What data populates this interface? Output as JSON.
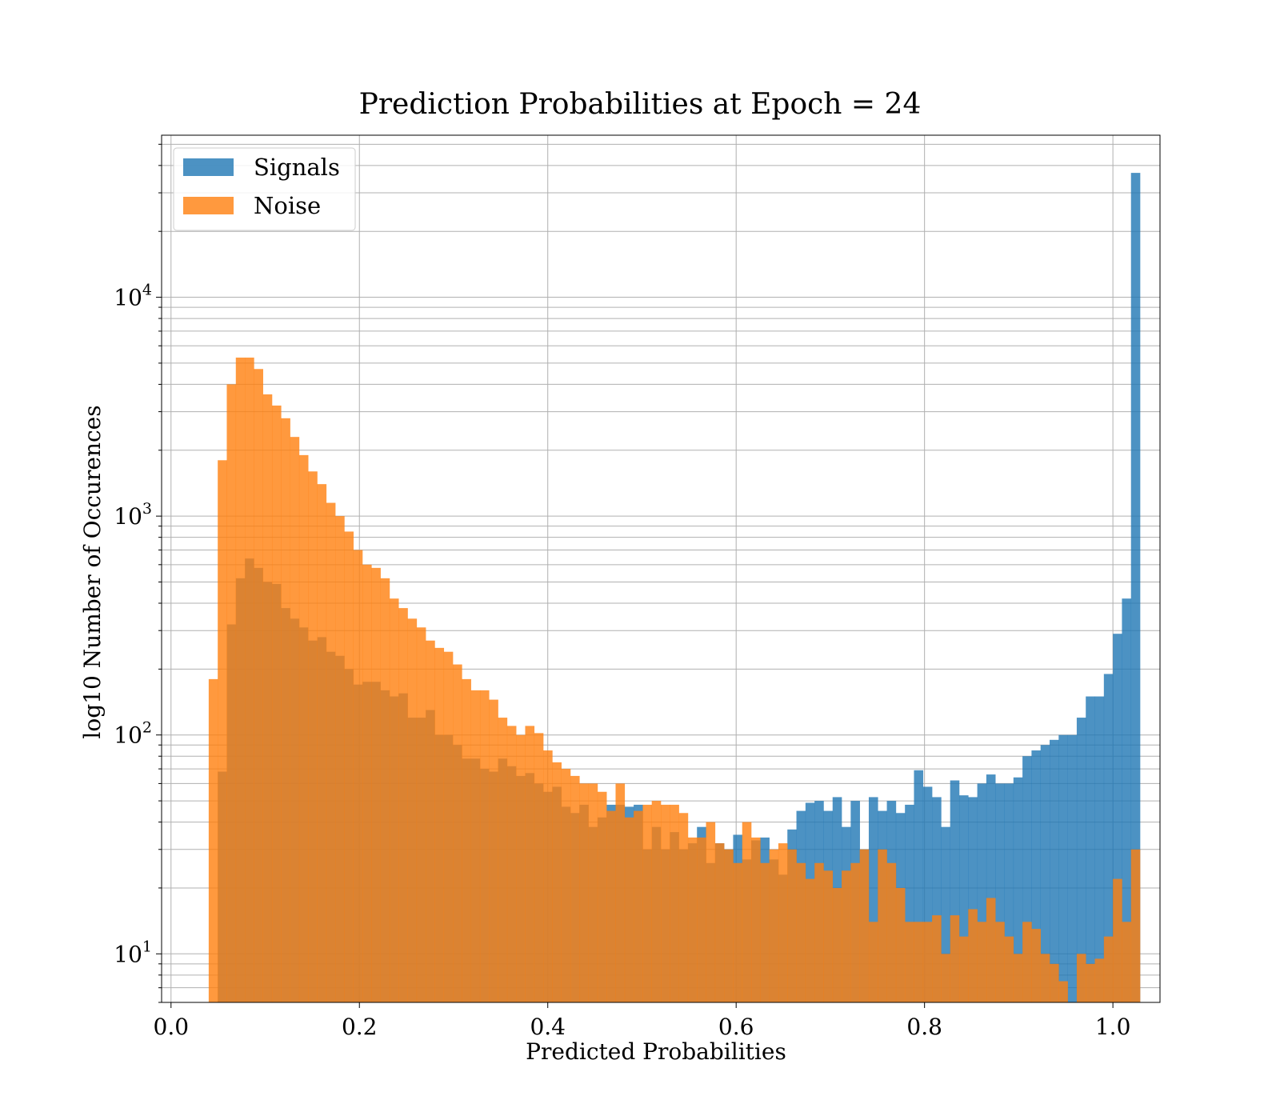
{
  "chart_data": {
    "type": "bar",
    "title": "Prediction Probabilities at Epoch = 24",
    "xlabel": "Predicted Probabilities",
    "ylabel": "log10 Number of Occurences",
    "xlim": [
      -0.01,
      1.05
    ],
    "ylim": [
      6,
      55000
    ],
    "yscale": "log",
    "grid": true,
    "legend": "upper-left",
    "bin_start": 0.04,
    "bin_width": 0.0096,
    "x_ticks": [
      {
        "value": 0.0,
        "label": "0.0"
      },
      {
        "value": 0.2,
        "label": "0.2"
      },
      {
        "value": 0.4,
        "label": "0.4"
      },
      {
        "value": 0.6,
        "label": "0.6"
      },
      {
        "value": 0.8,
        "label": "0.8"
      },
      {
        "value": 1.0,
        "label": "1.0"
      }
    ],
    "y_ticks": [
      {
        "value": 10,
        "base": "10",
        "exp": "1"
      },
      {
        "value": 100,
        "base": "10",
        "exp": "2"
      },
      {
        "value": 1000,
        "base": "10",
        "exp": "3"
      },
      {
        "value": 10000,
        "base": "10",
        "exp": "4"
      }
    ],
    "series": [
      {
        "name": "Signals",
        "color": "#1f77b4",
        "values": [
          0,
          68,
          320,
          520,
          640,
          580,
          500,
          490,
          380,
          340,
          310,
          270,
          280,
          240,
          230,
          200,
          170,
          175,
          175,
          160,
          150,
          155,
          120,
          120,
          130,
          100,
          100,
          90,
          78,
          78,
          70,
          68,
          78,
          72,
          65,
          67,
          60,
          55,
          58,
          47,
          44,
          48,
          38,
          42,
          48,
          48,
          47,
          48,
          30,
          38,
          30,
          36,
          30,
          32,
          38,
          26,
          32,
          30,
          35,
          27,
          33,
          34,
          27,
          23,
          37,
          45,
          49,
          50,
          45,
          52,
          38,
          50,
          30,
          52,
          45,
          50,
          44,
          48,
          69,
          58,
          52,
          38,
          62,
          53,
          52,
          60,
          66,
          60,
          60,
          64,
          80,
          85,
          90,
          95,
          100,
          100,
          120,
          150,
          150,
          190,
          290,
          420,
          37000
        ]
      },
      {
        "name": "Noise",
        "color": "#ff7f0e",
        "values": [
          180,
          1800,
          4000,
          5300,
          5300,
          4700,
          3600,
          3200,
          2800,
          2300,
          1900,
          1600,
          1400,
          1150,
          1000,
          850,
          700,
          600,
          580,
          520,
          420,
          380,
          340,
          310,
          270,
          250,
          240,
          210,
          180,
          160,
          160,
          145,
          120,
          110,
          100,
          110,
          102,
          85,
          75,
          70,
          65,
          60,
          60,
          55,
          45,
          60,
          42,
          45,
          48,
          50,
          48,
          48,
          44,
          34,
          34,
          40,
          32,
          30,
          26,
          40,
          34,
          26,
          30,
          32,
          30,
          26,
          22,
          26,
          24,
          20,
          24,
          26,
          30,
          14,
          30,
          26,
          20,
          14,
          14,
          14,
          15,
          10,
          15,
          12,
          16,
          14,
          18,
          14,
          12,
          10,
          14,
          13,
          10,
          9,
          7.5,
          6,
          10,
          9,
          9.5,
          12,
          22,
          14,
          30
        ]
      }
    ]
  }
}
